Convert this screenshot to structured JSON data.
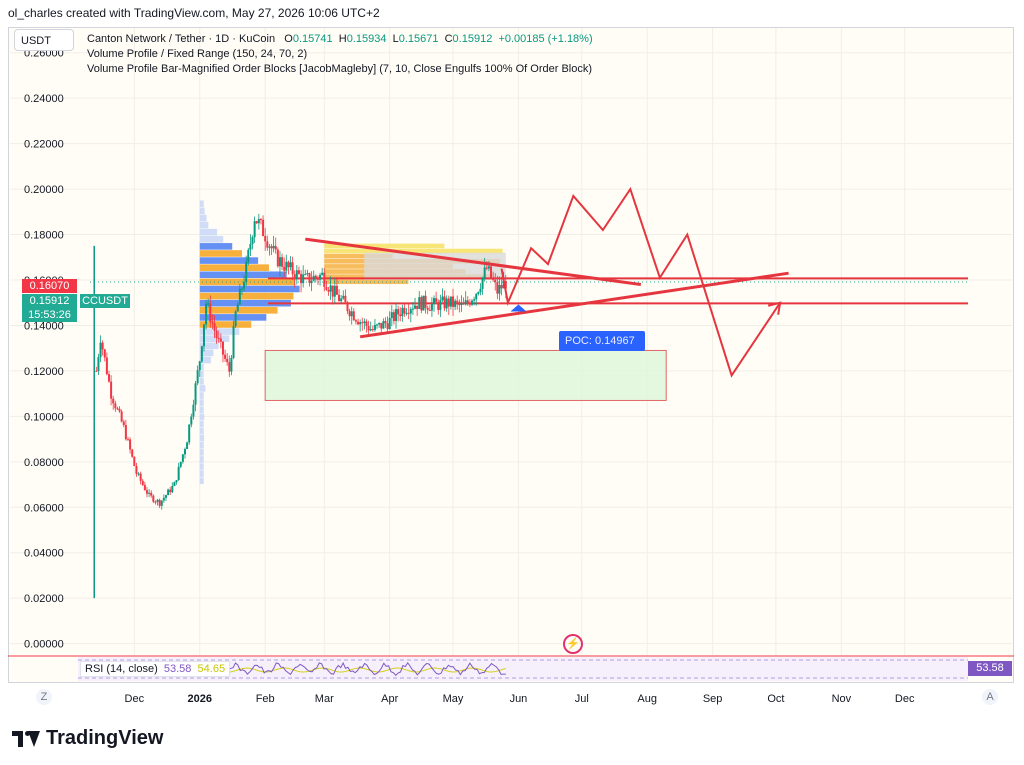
{
  "credit": "ol_charles created with TradingView.com, May 27, 2026 10:06 UTC+2",
  "currency_button": "USDT",
  "legend": {
    "symbol": "Canton Network / Tether · 1D · KuCoin",
    "o_label": "O",
    "o_value": "0.15741",
    "h_label": "H",
    "h_value": "0.15934",
    "l_label": "L",
    "l_value": "0.15671",
    "c_label": "C",
    "c_value": "0.15912",
    "change": "+0.00185 (+1.18%)",
    "indicator1": "Volume Profile / Fixed Range (150, 24, 70, 2)",
    "indicator2": "Volume Profile Bar-Magnified Order Blocks [JacobMagleby] (7, 10, Close Engulfs 100% Of Order Block)"
  },
  "price_pills": {
    "high_line": "0.16070",
    "last_price": "0.15912",
    "countdown": "15:53:26",
    "symbol_tag": "CCUSDT"
  },
  "poc_label": "POC: 0.14967",
  "rsi": {
    "label": "RSI (14, close)",
    "value": "53.58",
    "smoothed": "54.65",
    "badge": "53.58"
  },
  "corners": {
    "left": "Z",
    "right": "A"
  },
  "brand": "TradingView",
  "colors": {
    "bull": "#089981",
    "bear": "#f23645",
    "drawing": "#e5363f",
    "poc": "#2962ff",
    "rsi": "#7e57c2"
  },
  "chart_data": {
    "type": "candlestick",
    "y_axis": {
      "ticks": [
        "0.26000",
        "0.24000",
        "0.22000",
        "0.20000",
        "0.18000",
        "0.16000",
        "0.14000",
        "0.12000",
        "0.10000",
        "0.08000",
        "0.06000",
        "0.04000",
        "0.02000",
        "0.00000"
      ],
      "range": [
        -0.005,
        0.27
      ]
    },
    "x_axis": {
      "labels": [
        "Dec",
        "2026",
        "Feb",
        "Mar",
        "Apr",
        "May",
        "Jun",
        "Jul",
        "Aug",
        "Sep",
        "Oct",
        "Nov",
        "Dec"
      ],
      "range": [
        "2025-11-10",
        "2026-12-31"
      ]
    },
    "price_path": [
      [
        "2025-11-12",
        0.02
      ],
      [
        "2025-11-13",
        0.12
      ],
      [
        "2025-11-15",
        0.135
      ],
      [
        "2025-11-20",
        0.11
      ],
      [
        "2025-11-26",
        0.095
      ],
      [
        "2025-12-02",
        0.075
      ],
      [
        "2025-12-08",
        0.065
      ],
      [
        "2025-12-13",
        0.062
      ],
      [
        "2025-12-20",
        0.07
      ],
      [
        "2025-12-26",
        0.09
      ],
      [
        "2026-01-01",
        0.125
      ],
      [
        "2026-01-04",
        0.15
      ],
      [
        "2026-01-09",
        0.135
      ],
      [
        "2026-01-15",
        0.12
      ],
      [
        "2026-01-18",
        0.145
      ],
      [
        "2026-01-23",
        0.165
      ],
      [
        "2026-01-27",
        0.188
      ],
      [
        "2026-02-01",
        0.18
      ],
      [
        "2026-02-06",
        0.17
      ],
      [
        "2026-02-12",
        0.165
      ],
      [
        "2026-02-20",
        0.16
      ],
      [
        "2026-02-28",
        0.162
      ],
      [
        "2026-03-05",
        0.155
      ],
      [
        "2026-03-12",
        0.148
      ],
      [
        "2026-03-18",
        0.142
      ],
      [
        "2026-03-24",
        0.138
      ],
      [
        "2026-04-01",
        0.142
      ],
      [
        "2026-04-08",
        0.148
      ],
      [
        "2026-04-15",
        0.15
      ],
      [
        "2026-04-22",
        0.149
      ],
      [
        "2026-04-29",
        0.15
      ],
      [
        "2026-05-06",
        0.148
      ],
      [
        "2026-05-12",
        0.155
      ],
      [
        "2026-05-17",
        0.165
      ],
      [
        "2026-05-22",
        0.155
      ],
      [
        "2026-05-26",
        0.1591
      ]
    ],
    "volume_profiles": [
      {
        "range": [
          "2026-01-01",
          "2026-02-10"
        ],
        "low": 0.07,
        "high": 0.195
      },
      {
        "range": [
          "2026-03-01",
          "2026-05-26"
        ],
        "low": 0.158,
        "high": 0.176
      }
    ],
    "horizontal_levels": [
      0.1607,
      0.1497
    ],
    "poc": 0.14967,
    "triangle": {
      "upper": [
        [
          "2026-02-20",
          0.178
        ],
        [
          "2026-07-29",
          0.158
        ]
      ],
      "lower": [
        [
          "2026-03-18",
          0.135
        ],
        [
          "2026-10-07",
          0.163
        ]
      ]
    },
    "projection_path": [
      [
        "2026-05-24",
        0.165
      ],
      [
        "2026-05-27",
        0.15
      ],
      [
        "2026-06-07",
        0.174
      ],
      [
        "2026-06-15",
        0.167
      ],
      [
        "2026-06-27",
        0.197
      ],
      [
        "2026-07-11",
        0.182
      ],
      [
        "2026-07-24",
        0.2
      ],
      [
        "2026-08-07",
        0.161
      ],
      [
        "2026-08-20",
        0.18
      ],
      [
        "2026-09-10",
        0.118
      ],
      [
        "2026-10-03",
        0.15
      ]
    ],
    "demand_zone": {
      "range": [
        "2026-02-01",
        "2026-08-10"
      ],
      "low": 0.107,
      "high": 0.129
    },
    "rsi_value": 53.58
  }
}
